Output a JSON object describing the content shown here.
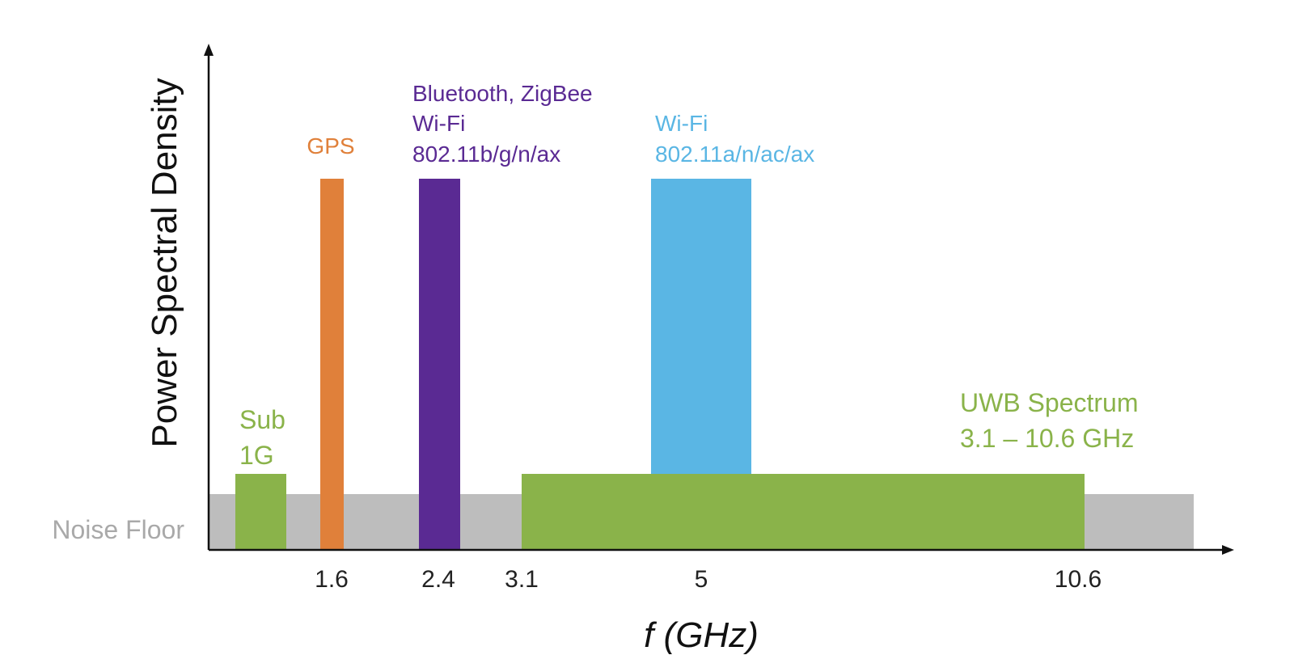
{
  "axes": {
    "y_label": "Power Spectral Density",
    "x_label": "f (GHz)",
    "noise_floor_label": "Noise Floor"
  },
  "ticks": [
    "1.6",
    "2.4",
    "3.1",
    "5",
    "10.6"
  ],
  "bands": {
    "sub1g": {
      "line1": "Sub",
      "line2": "1G"
    },
    "gps": {
      "label": "GPS"
    },
    "bluetooth": {
      "line1": "Bluetooth, ZigBee",
      "line2": "Wi-Fi",
      "line3": "802.11b/g/n/ax"
    },
    "wifi5": {
      "line1": "Wi-Fi",
      "line2": "802.11a/n/ac/ax"
    },
    "uwb": {
      "line1": "UWB Spectrum",
      "line2": "3.1 – 10.6 GHz"
    }
  },
  "colors": {
    "noise_floor": "#bdbdbd",
    "green": "#8ab34a",
    "orange": "#e0803a",
    "purple": "#5a2a93",
    "blue": "#5ab6e4",
    "axis": "#111111",
    "tick_text": "#222222",
    "noise_text": "#a9a9a9"
  }
}
